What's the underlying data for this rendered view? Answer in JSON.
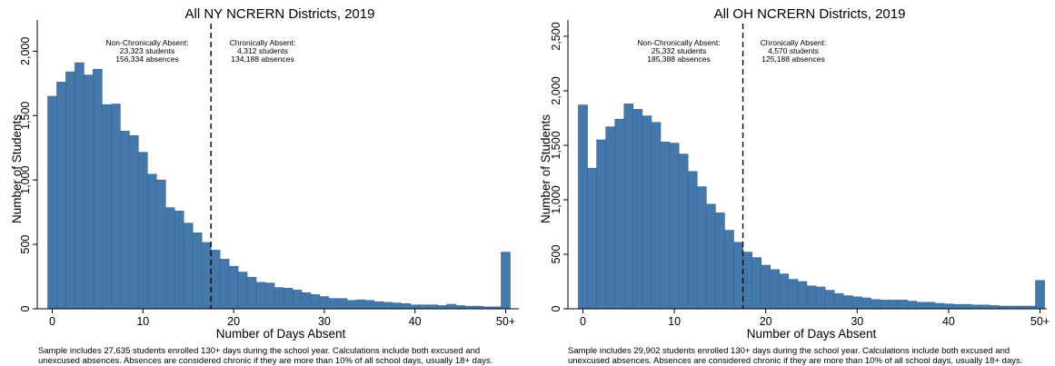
{
  "colors": {
    "bar_fill": "#4477AA",
    "bar_stroke": "#3A668F",
    "axis": "#000000"
  },
  "chart_data": [
    {
      "type": "bar",
      "title": "All NY NCRERN Districts, 2019",
      "xlabel": "Number of Days Absent",
      "ylabel": "Number of Students",
      "xlim": [
        0,
        50
      ],
      "ylim": [
        0,
        2200
      ],
      "xticks": [
        0,
        10,
        20,
        30,
        40,
        50
      ],
      "xtick_labels": [
        "0",
        "10",
        "20",
        "30",
        "40",
        "50+"
      ],
      "yticks": [
        0,
        500,
        1000,
        1500,
        2000
      ],
      "ytick_labels": [
        "0",
        "500",
        "1,000",
        "1,500",
        "2,000"
      ],
      "x": [
        0,
        1,
        2,
        3,
        4,
        5,
        6,
        7,
        8,
        9,
        10,
        11,
        12,
        13,
        14,
        15,
        16,
        17,
        18,
        19,
        20,
        21,
        22,
        23,
        24,
        25,
        26,
        27,
        28,
        29,
        30,
        31,
        32,
        33,
        34,
        35,
        36,
        37,
        38,
        39,
        40,
        41,
        42,
        43,
        44,
        45,
        46,
        47,
        48,
        49,
        50
      ],
      "values": [
        1650,
        1760,
        1840,
        1910,
        1815,
        1860,
        1585,
        1590,
        1380,
        1345,
        1215,
        1045,
        1000,
        785,
        760,
        665,
        590,
        515,
        455,
        385,
        330,
        285,
        245,
        205,
        200,
        165,
        160,
        145,
        125,
        110,
        95,
        80,
        80,
        65,
        70,
        65,
        55,
        50,
        45,
        40,
        30,
        30,
        30,
        25,
        35,
        25,
        20,
        20,
        15,
        15,
        440
      ],
      "threshold": 17.5,
      "annotation_left": {
        "title": "Non-Chronically Absent:",
        "students": "23,323 students",
        "absences": "156,334 absences"
      },
      "annotation_right": {
        "title": "Chronically Absent:",
        "students": "4,312 students",
        "absences": "134,188 absences"
      },
      "footnote_line1": "Sample includes 27,635 students enrolled 130+ days during the school year. Calculations include both excused and",
      "footnote_line2": "unexcused absences. Absences are considered chronic if they are more than 10% of all school days, usually 18+ days."
    },
    {
      "type": "bar",
      "title": "All OH NCRERN Districts, 2019",
      "xlabel": "Number of Days Absent",
      "ylabel": "Number of Students",
      "xlim": [
        0,
        50
      ],
      "ylim": [
        0,
        2600
      ],
      "xticks": [
        0,
        10,
        20,
        30,
        40,
        50
      ],
      "xtick_labels": [
        "0",
        "10",
        "20",
        "30",
        "40",
        "50+"
      ],
      "yticks": [
        0,
        500,
        1000,
        1500,
        2000,
        2500
      ],
      "ytick_labels": [
        "0",
        "500",
        "1,000",
        "1,500",
        "2,000",
        "2,500"
      ],
      "x": [
        0,
        1,
        2,
        3,
        4,
        5,
        6,
        7,
        8,
        9,
        10,
        11,
        12,
        13,
        14,
        15,
        16,
        17,
        18,
        19,
        20,
        21,
        22,
        23,
        24,
        25,
        26,
        27,
        28,
        29,
        30,
        31,
        32,
        33,
        34,
        35,
        36,
        37,
        38,
        39,
        40,
        41,
        42,
        43,
        44,
        45,
        46,
        47,
        48,
        49,
        50
      ],
      "values": [
        1870,
        1290,
        1550,
        1670,
        1740,
        1880,
        1830,
        1770,
        1710,
        1530,
        1520,
        1420,
        1260,
        1120,
        960,
        880,
        720,
        610,
        520,
        470,
        400,
        360,
        320,
        270,
        250,
        210,
        200,
        170,
        140,
        120,
        110,
        100,
        85,
        80,
        80,
        80,
        70,
        60,
        60,
        50,
        45,
        40,
        40,
        35,
        35,
        30,
        25,
        25,
        25,
        25,
        260
      ],
      "threshold": 17.5,
      "annotation_left": {
        "title": "Non-Chronically Absent:",
        "students": "25,332 students",
        "absences": "185,388 absences"
      },
      "annotation_right": {
        "title": "Chronically Absent:",
        "students": "4,570 students",
        "absences": "125,188 absences"
      },
      "footnote_line1": "Sample includes 29,902 students enrolled 130+ days during the school year. Calculations include both excused and",
      "footnote_line2": "unexcused absences. Absences are considered chronic if they are more than 10% of all school days, usually 18+ days."
    }
  ]
}
